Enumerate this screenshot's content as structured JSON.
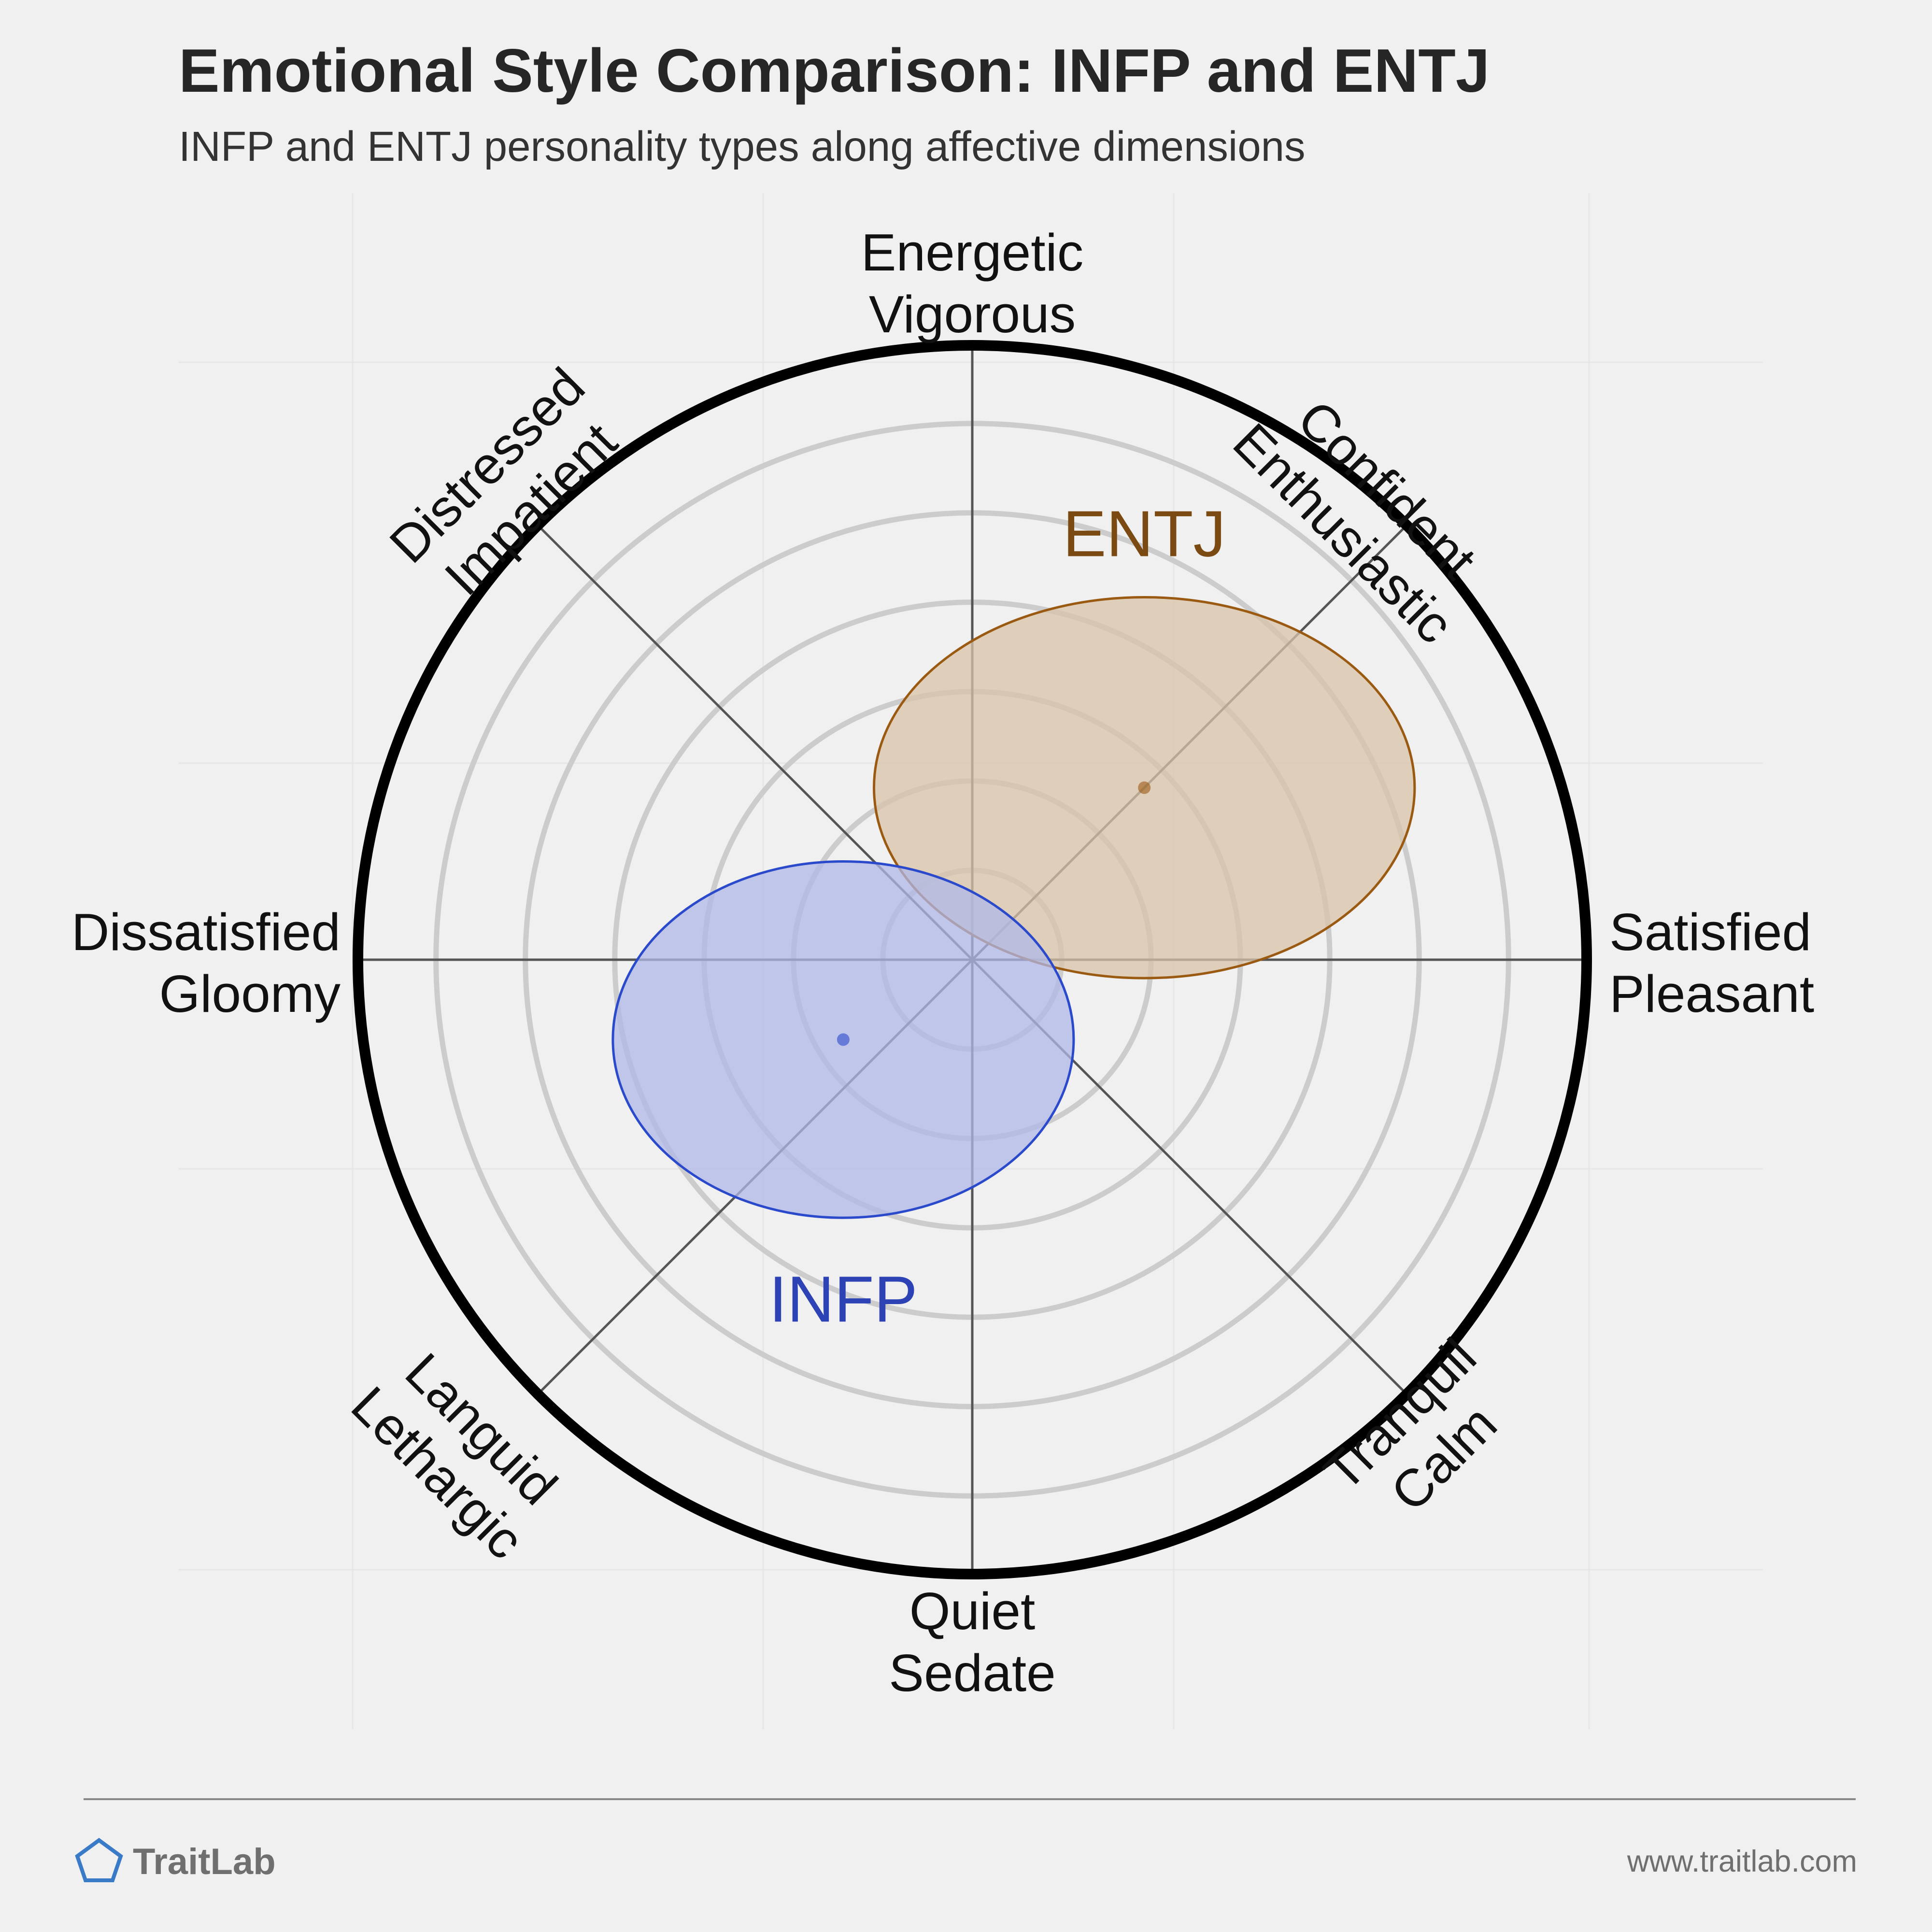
{
  "title": "Emotional Style Comparison: INFP and ENTJ",
  "subtitle": "INFP and ENTJ personality types along affective dimensions",
  "footer": {
    "brand": "TraitLab",
    "url": "www.traitlab.com",
    "logo_icon": "pentagon-icon"
  },
  "colors": {
    "background": "#f0f0f0",
    "outer_ring": "#000000",
    "inner_rings": "#cccccc",
    "axes": "#555555",
    "entj_fill": "#d8c3a8",
    "entj_stroke": "#9a5a12",
    "entj_label": "#7a4a12",
    "infp_fill": "#b0b8e8",
    "infp_stroke": "#2a4acb",
    "infp_label": "#2d43b5",
    "logo": "#3a7bc8"
  },
  "chart_data": {
    "type": "circumplex",
    "x_axis": {
      "negative": [
        "Dissatisfied",
        "Gloomy"
      ],
      "positive": [
        "Satisfied",
        "Pleasant"
      ]
    },
    "y_axis": {
      "negative": [
        "Quiet",
        "Sedate"
      ],
      "positive": [
        "Energetic",
        "Vigorous"
      ]
    },
    "diagonals": {
      "upper_right": [
        "Confident",
        "Enthusiastic"
      ],
      "upper_left": [
        "Distressed",
        "Impatient"
      ],
      "lower_left": [
        "Languid",
        "Lethargic"
      ],
      "lower_right": [
        "Tranquil",
        "Calm"
      ]
    },
    "range": [
      -1,
      1
    ],
    "rings": 6,
    "series": [
      {
        "name": "ENTJ",
        "center": [
          0.28,
          0.28
        ],
        "spread": [
          0.44,
          0.31
        ]
      },
      {
        "name": "INFP",
        "center": [
          -0.21,
          -0.13
        ],
        "spread": [
          0.375,
          0.29
        ]
      }
    ]
  }
}
